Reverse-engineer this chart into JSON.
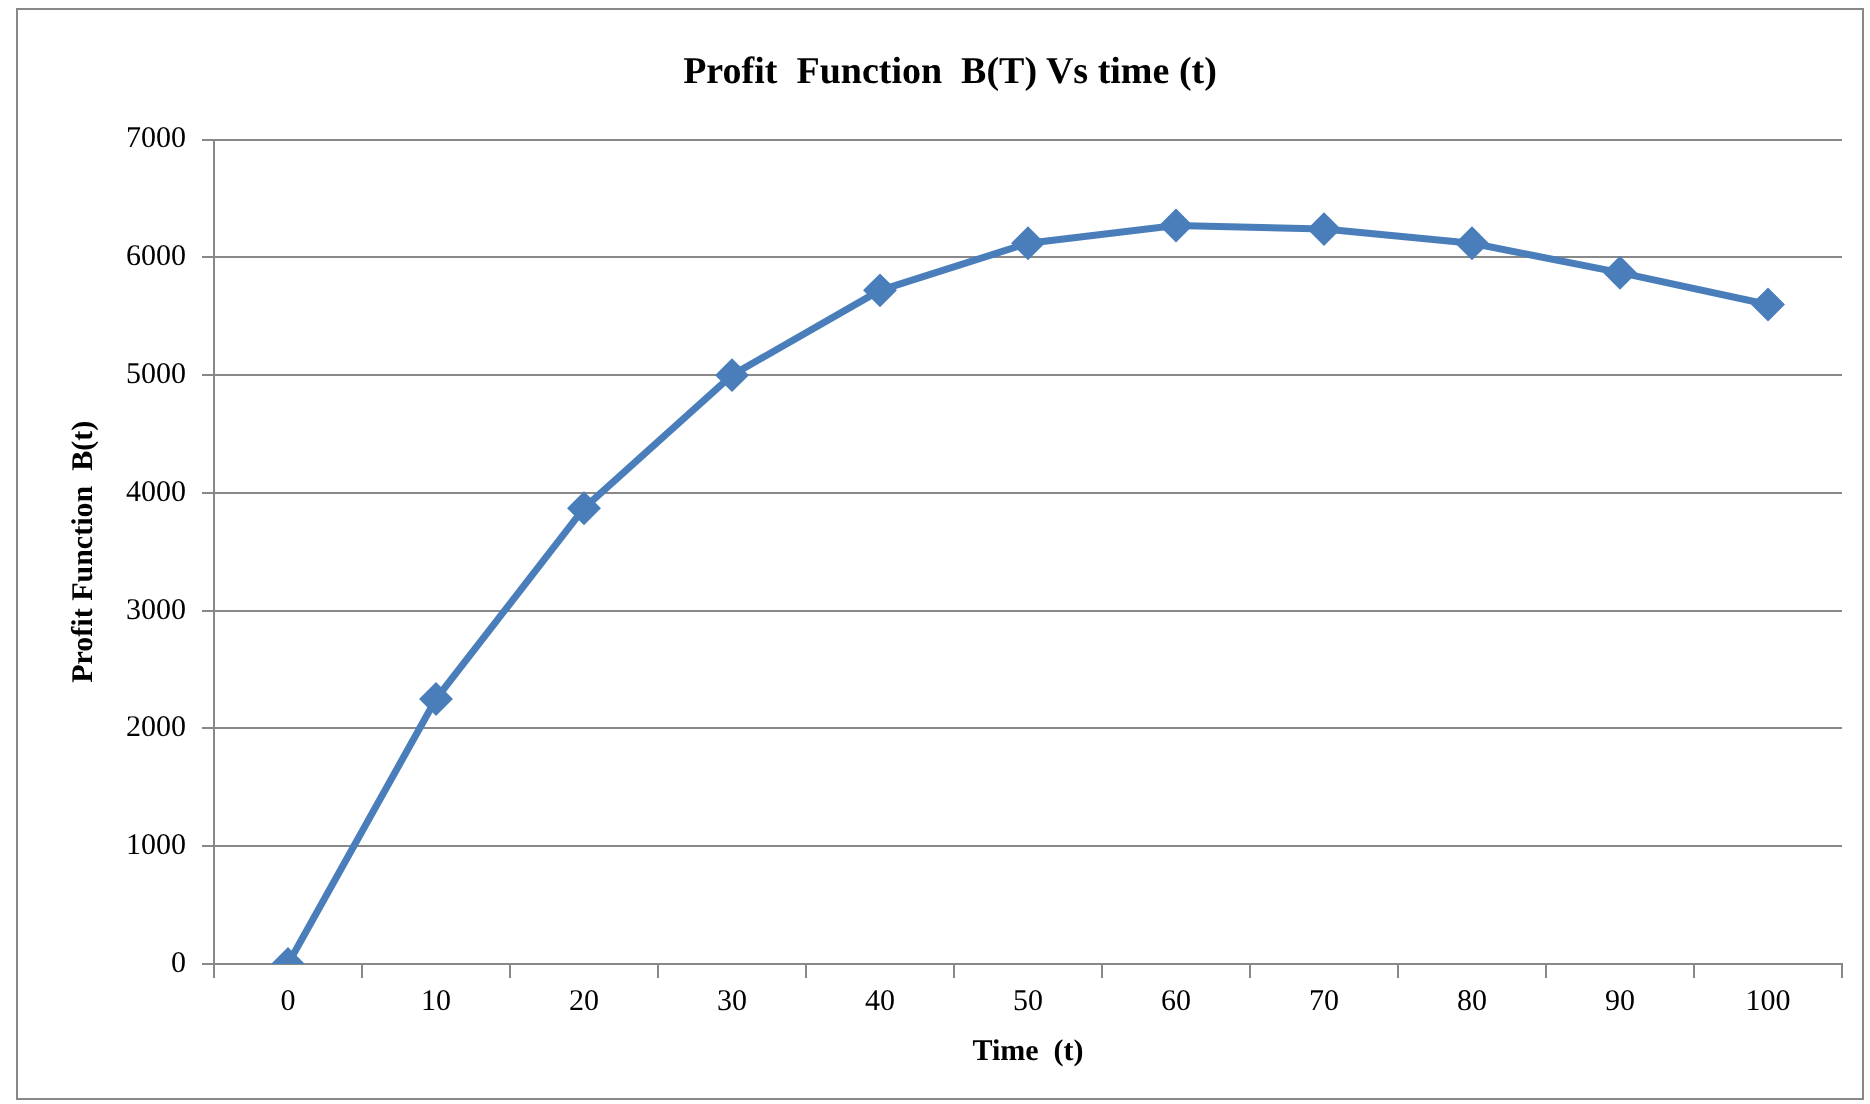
{
  "chart_data": {
    "type": "line",
    "title": "Profit  Function  B(T) Vs time (t)",
    "xlabel": "Time  (t)",
    "ylabel": "Profit Function  B(t)",
    "categories": [
      "0",
      "10",
      "20",
      "30",
      "40",
      "50",
      "60",
      "70",
      "80",
      "90",
      "100"
    ],
    "series": [
      {
        "color": "#4a7ebb",
        "values": [
          0,
          2250,
          3870,
          5000,
          5720,
          6120,
          6270,
          6240,
          6120,
          5870,
          5600
        ]
      }
    ],
    "ylim": [
      0,
      7000
    ],
    "yticks": [
      0,
      1000,
      2000,
      3000,
      4000,
      5000,
      6000,
      7000
    ],
    "grid": "y",
    "legend": false,
    "marker": "diamond",
    "line_style": "solid"
  }
}
